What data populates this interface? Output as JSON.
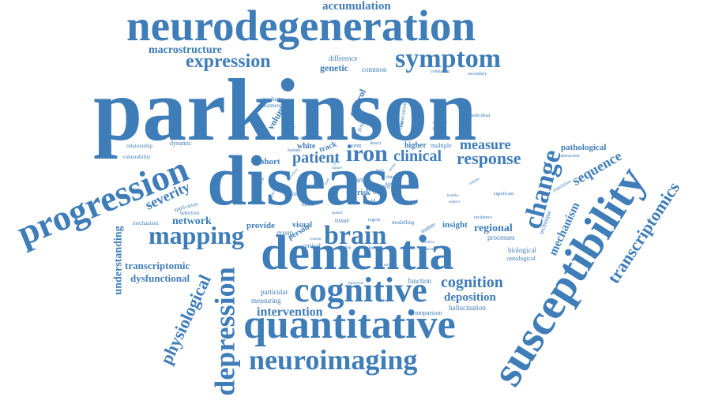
{
  "color": "#3f7db8",
  "words": [
    {
      "text": "parkinson",
      "weight": 100
    },
    {
      "text": "disease",
      "weight": 78
    },
    {
      "text": "neurodegeneration",
      "weight": 48
    },
    {
      "text": "dementia",
      "weight": 44
    },
    {
      "text": "susceptibility",
      "weight": 46
    },
    {
      "text": "progression",
      "weight": 40
    },
    {
      "text": "quantitative",
      "weight": 42
    },
    {
      "text": "cognitive",
      "weight": 34
    },
    {
      "text": "depression",
      "weight": 32
    },
    {
      "text": "symptom",
      "weight": 30
    },
    {
      "text": "mapping",
      "weight": 30
    },
    {
      "text": "brain",
      "weight": 30
    },
    {
      "text": "neuroimaging",
      "weight": 30
    },
    {
      "text": "change",
      "weight": 28
    },
    {
      "text": "iron",
      "weight": 26
    },
    {
      "text": "expression",
      "weight": 22
    },
    {
      "text": "transcriptomics",
      "weight": 22
    },
    {
      "text": "response",
      "weight": 20
    },
    {
      "text": "physiological",
      "weight": 20
    },
    {
      "text": "severity",
      "weight": 18
    },
    {
      "text": "sequence",
      "weight": 18
    },
    {
      "text": "cognition",
      "weight": 18
    },
    {
      "text": "patient",
      "weight": 18
    },
    {
      "text": "clinical",
      "weight": 18
    },
    {
      "text": "measure",
      "weight": 16
    },
    {
      "text": "intervention",
      "weight": 16
    },
    {
      "text": "deposition",
      "weight": 15
    },
    {
      "text": "network",
      "weight": 14
    },
    {
      "text": "regional",
      "weight": 14
    },
    {
      "text": "mechanism",
      "weight": 14
    },
    {
      "text": "accumulation",
      "weight": 14
    },
    {
      "text": "macrostructure",
      "weight": 14
    },
    {
      "text": "understanding",
      "weight": 14
    },
    {
      "text": "transcriptomic",
      "weight": 13
    },
    {
      "text": "dysfunctional",
      "weight": 13
    },
    {
      "text": "volume",
      "weight": 12
    },
    {
      "text": "genetic",
      "weight": 12
    },
    {
      "text": "control",
      "weight": 12
    },
    {
      "text": "pathological",
      "weight": 11
    },
    {
      "text": "cohort",
      "weight": 11
    },
    {
      "text": "provide",
      "weight": 11
    },
    {
      "text": "insight",
      "weight": 11
    },
    {
      "text": "visual",
      "weight": 10
    },
    {
      "text": "person",
      "weight": 10
    },
    {
      "text": "higher",
      "weight": 10
    },
    {
      "text": "white",
      "weight": 10
    },
    {
      "text": "track",
      "weight": 10
    },
    {
      "text": "score",
      "weight": 9
    },
    {
      "text": "particular",
      "weight": 9
    },
    {
      "text": "measuring",
      "weight": 9
    },
    {
      "text": "difference",
      "weight": 9
    },
    {
      "text": "common",
      "weight": 8
    },
    {
      "text": "function",
      "weight": 9
    },
    {
      "text": "hallucination",
      "weight": 9
    },
    {
      "text": "comparison",
      "weight": 8
    },
    {
      "text": "biological",
      "weight": 8
    },
    {
      "text": "ontological",
      "weight": 8
    },
    {
      "text": "processes",
      "weight": 8
    },
    {
      "text": "technique",
      "weight": 8
    },
    {
      "text": "group",
      "weight": 9
    },
    {
      "text": "cortical",
      "weight": 8
    },
    {
      "text": "tissue",
      "weight": 8
    },
    {
      "text": "modelling",
      "weight": 7
    },
    {
      "text": "matter",
      "weight": 8
    },
    {
      "text": "risk",
      "weight": 9
    },
    {
      "text": "more",
      "weight": 8
    },
    {
      "text": "art",
      "weight": 8
    },
    {
      "text": "evaluate",
      "weight": 8
    },
    {
      "text": "treatment",
      "weight": 7
    },
    {
      "text": "relationship",
      "weight": 7
    },
    {
      "text": "dynamic",
      "weight": 8
    },
    {
      "text": "vulnerability",
      "weight": 7
    },
    {
      "text": "application",
      "weight": 7
    },
    {
      "text": "selective",
      "weight": 7
    },
    {
      "text": "mechanistic",
      "weight": 7
    },
    {
      "text": "event",
      "weight": 8
    },
    {
      "text": "multiple",
      "weight": 8
    },
    {
      "text": "potential",
      "weight": 7
    },
    {
      "text": "association",
      "weight": 7
    },
    {
      "text": "motor",
      "weight": 8
    },
    {
      "text": "consistent",
      "weight": 6
    },
    {
      "text": "secondary",
      "weight": 6
    },
    {
      "text": "atrophy",
      "weight": 6
    },
    {
      "text": "pattern",
      "weight": 6
    },
    {
      "text": "individual",
      "weight": 6
    },
    {
      "text": "interaction",
      "weight": 6
    },
    {
      "text": "population",
      "weight": 6
    },
    {
      "text": "significant",
      "weight": 6
    },
    {
      "text": "incidence",
      "weight": 6
    },
    {
      "text": "cellular",
      "weight": 5
    },
    {
      "text": "subject",
      "weight": 5
    },
    {
      "text": "healthy",
      "weight": 5
    },
    {
      "text": "effect",
      "weight": 6
    },
    {
      "text": "sensitive",
      "weight": 5
    },
    {
      "text": "promise",
      "weight": 5
    },
    {
      "text": "decline",
      "weight": 6
    },
    {
      "text": "estimate",
      "weight": 5
    },
    {
      "text": "regression",
      "weight": 5
    },
    {
      "text": "finding",
      "weight": 5
    },
    {
      "text": "content",
      "weight": 5
    },
    {
      "text": "spatial",
      "weight": 5
    },
    {
      "text": "linked",
      "weight": 6
    },
    {
      "text": "profile",
      "weight": 6
    },
    {
      "text": "research",
      "weight": 6
    },
    {
      "text": "affected",
      "weight": 5
    },
    {
      "text": "positive",
      "weight": 5
    },
    {
      "text": "feature",
      "weight": 6
    },
    {
      "text": "context",
      "weight": 6
    },
    {
      "text": "detect",
      "weight": 6
    },
    {
      "text": "analyse",
      "weight": 5
    },
    {
      "text": "data",
      "weight": 6
    },
    {
      "text": "model",
      "weight": 6
    },
    {
      "text": "region",
      "weight": 6
    },
    {
      "text": "stage",
      "weight": 5
    },
    {
      "text": "most",
      "weight": 5
    },
    {
      "text": "relate",
      "weight": 5
    },
    {
      "text": "failure",
      "weight": 5
    },
    {
      "text": "used",
      "weight": 5
    },
    {
      "text": "early",
      "weight": 5
    },
    {
      "text": "useful",
      "weight": 5
    }
  ]
}
